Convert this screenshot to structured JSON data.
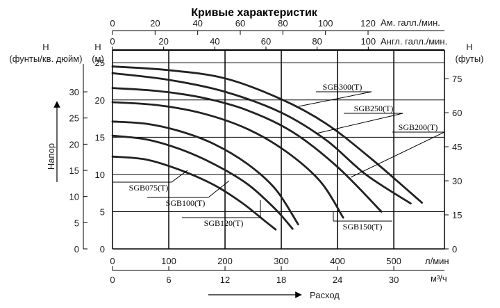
{
  "chart_data": {
    "type": "line",
    "title": "Кривые характеристик",
    "x_primary_label": "л/мин",
    "x_primary_ticks": [
      0,
      100,
      200,
      300,
      400,
      500
    ],
    "x_primary_range": [
      0,
      590
    ],
    "x_m3h_label": "м³/ч",
    "x_m3h_ticks": [
      0,
      6,
      12,
      18,
      24,
      30
    ],
    "x_bottom_title": "Расход",
    "x_top_us_label": "Ам. галл./мин.",
    "x_top_us_ticks": [
      0,
      20,
      40,
      60,
      80,
      100,
      120
    ],
    "x_top_imp_label": "Англ. галл./мин.",
    "x_top_imp_ticks": [
      0,
      20,
      40,
      60,
      80,
      100
    ],
    "y_left_m_label": "H",
    "y_left_m_unit": "(м)",
    "y_left_m_ticks": [
      0,
      5,
      10,
      15,
      20,
      25
    ],
    "y_left_m_range": [
      0,
      26.7
    ],
    "y_left_psi_label": "H",
    "y_left_psi_unit": "(фунты/кв. дюйм)",
    "y_left_psi_ticks": [
      0,
      5,
      10,
      15,
      20,
      25,
      30
    ],
    "y_right_ft_label": "H",
    "y_right_ft_unit": "(футы)",
    "y_right_ft_ticks": [
      0,
      15,
      30,
      45,
      60,
      75
    ],
    "y_axis_title": "Напор",
    "grid": true,
    "series": [
      {
        "name": "SGB075(T)",
        "points": [
          [
            0,
            12.4
          ],
          [
            60,
            12
          ],
          [
            120,
            10.6
          ],
          [
            180,
            8.6
          ],
          [
            230,
            6.2
          ],
          [
            270,
            3.8
          ],
          [
            290,
            2.6
          ]
        ]
      },
      {
        "name": "SGB100(T)",
        "points": [
          [
            0,
            15.2
          ],
          [
            60,
            14.7
          ],
          [
            120,
            13.4
          ],
          [
            180,
            11.4
          ],
          [
            240,
            8.7
          ],
          [
            290,
            5.3
          ],
          [
            320,
            2.7
          ]
        ]
      },
      {
        "name": "SGB120(T)",
        "points": [
          [
            0,
            17.1
          ],
          [
            60,
            16.8
          ],
          [
            120,
            15.8
          ],
          [
            180,
            14.1
          ],
          [
            240,
            11.4
          ],
          [
            290,
            8.0
          ],
          [
            330,
            3.3
          ]
        ]
      },
      {
        "name": "SGB150(T)",
        "points": [
          [
            0,
            19.7
          ],
          [
            80,
            19.3
          ],
          [
            160,
            18.2
          ],
          [
            240,
            16.1
          ],
          [
            310,
            13.0
          ],
          [
            370,
            9.0
          ],
          [
            410,
            4.2
          ]
        ]
      },
      {
        "name": "SGB200(T)",
        "points": [
          [
            0,
            21.6
          ],
          [
            80,
            21.2
          ],
          [
            160,
            20.3
          ],
          [
            240,
            18.6
          ],
          [
            320,
            15.7
          ],
          [
            400,
            11.0
          ],
          [
            478,
            5.0
          ]
        ]
      },
      {
        "name": "SGB250(T)",
        "points": [
          [
            0,
            23.6
          ],
          [
            100,
            22.7
          ],
          [
            200,
            21.1
          ],
          [
            300,
            18.3
          ],
          [
            380,
            14.6
          ],
          [
            450,
            10.0
          ],
          [
            530,
            6.1
          ]
        ]
      },
      {
        "name": "SGB300(T)",
        "points": [
          [
            0,
            24.5
          ],
          [
            100,
            24.0
          ],
          [
            200,
            22.9
          ],
          [
            300,
            20.1
          ],
          [
            380,
            16.8
          ],
          [
            460,
            12.1
          ],
          [
            550,
            6.2
          ]
        ]
      }
    ]
  }
}
